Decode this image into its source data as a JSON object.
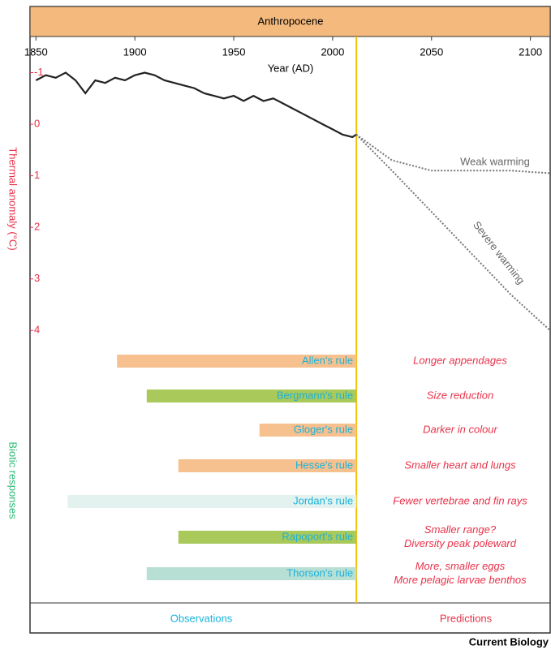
{
  "chart_data": {
    "type": "line",
    "title": "Anthropocene",
    "xlabel": "Year (AD)",
    "ylabel": "Thermal anomaly (°C)",
    "xlim": [
      1847,
      2110
    ],
    "xticks": [
      1850,
      1900,
      1950,
      2000,
      2050,
      2100
    ],
    "ylim": [
      -1.7,
      4.2
    ],
    "yticks": [
      -1,
      0,
      1,
      2,
      3,
      4
    ],
    "y_inverted": true,
    "present_year": 2012,
    "series": [
      {
        "color": "#222222",
        "style": "solid",
        "x": [
          1850,
          1855,
          1860,
          1865,
          1870,
          1875,
          1880,
          1885,
          1890,
          1895,
          1900,
          1905,
          1910,
          1915,
          1920,
          1925,
          1930,
          1935,
          1940,
          1945,
          1950,
          1955,
          1960,
          1965,
          1970,
          1975,
          1980,
          1985,
          1990,
          1995,
          2000,
          2005,
          2010,
          2012
        ],
        "values": [
          -0.85,
          -0.95,
          -0.9,
          -1.0,
          -0.85,
          -0.6,
          -0.85,
          -0.8,
          -0.9,
          -0.85,
          -0.95,
          -1.0,
          -0.95,
          -0.85,
          -0.8,
          -0.75,
          -0.7,
          -0.6,
          -0.55,
          -0.5,
          -0.55,
          -0.45,
          -0.55,
          -0.45,
          -0.5,
          -0.4,
          -0.3,
          -0.2,
          -0.1,
          0.0,
          0.1,
          0.2,
          0.25,
          0.2
        ]
      },
      {
        "name": "Weak warming",
        "color": "#777777",
        "style": "dotted",
        "x": [
          2012,
          2030,
          2050,
          2070,
          2090,
          2110
        ],
        "values": [
          0.2,
          0.7,
          0.9,
          0.9,
          0.9,
          0.95
        ]
      },
      {
        "name": "Severe warming",
        "color": "#777777",
        "style": "dotted",
        "x": [
          2012,
          2030,
          2050,
          2070,
          2090,
          2110
        ],
        "values": [
          0.2,
          0.9,
          1.7,
          2.5,
          3.3,
          4.0
        ]
      }
    ],
    "responses_label": "Biotic responses",
    "rules": [
      {
        "name": "Allen's rule",
        "start": 1891,
        "color": "#f6c08f",
        "prediction": [
          "Longer appendages"
        ]
      },
      {
        "name": "Bergmann's rule",
        "start": 1906,
        "color": "#a9c95a",
        "prediction": [
          "Size reduction"
        ]
      },
      {
        "name": "Gloger's rule",
        "start": 1963,
        "color": "#f6c08f",
        "prediction": [
          "Darker in colour"
        ]
      },
      {
        "name": "Hesse's rule",
        "start": 1922,
        "color": "#f6c08f",
        "prediction": [
          "Smaller heart and lungs"
        ]
      },
      {
        "name": "Jordan's rule",
        "start": 1866,
        "color": "#e3f2ee",
        "prediction": [
          "Fewer vertebrae and fin rays"
        ]
      },
      {
        "name": "Rapoport's rule",
        "start": 1922,
        "color": "#a9c95a",
        "prediction": [
          "Smaller range?",
          "Diversity peak poleward"
        ]
      },
      {
        "name": "Thorson's rule",
        "start": 1906,
        "color": "#b8dfd4",
        "prediction": [
          "More, smaller eggs",
          "More pelagic larvae benthos"
        ]
      }
    ],
    "observations_label": "Observations",
    "predictions_label": "Predictions",
    "source": "Current Biology"
  }
}
